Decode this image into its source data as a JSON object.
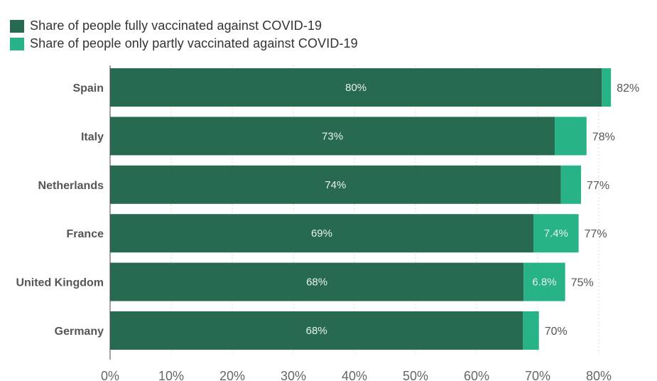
{
  "chart_data": {
    "type": "bar",
    "orientation": "horizontal",
    "stacked": true,
    "categories": [
      "Spain",
      "Italy",
      "Netherlands",
      "France",
      "United Kingdom",
      "Germany"
    ],
    "series": [
      {
        "name": "Share of people fully vaccinated against COVID-19",
        "color": "#286a4f",
        "values": [
          80.5,
          72.8,
          73.8,
          69.3,
          67.7,
          67.6
        ],
        "labels": [
          "80%",
          "73%",
          "74%",
          "69%",
          "68%",
          "68%"
        ]
      },
      {
        "name": "Share of people only partly vaccinated against COVID-19",
        "color": "#27b287",
        "values": [
          1.5,
          5.2,
          3.3,
          7.4,
          6.8,
          2.6
        ],
        "labels": [
          "",
          "",
          "",
          "7.4%",
          "6.8%",
          ""
        ]
      }
    ],
    "totals": [
      "82%",
      "78%",
      "77%",
      "77%",
      "75%",
      "70%"
    ],
    "xlim": [
      0,
      82
    ],
    "xticks": [
      0,
      10,
      20,
      30,
      40,
      50,
      60,
      70,
      80
    ],
    "xtick_labels": [
      "0%",
      "10%",
      "20%",
      "30%",
      "40%",
      "50%",
      "60%",
      "70%",
      "80%"
    ],
    "grid": true,
    "legend_position": "top-left"
  }
}
